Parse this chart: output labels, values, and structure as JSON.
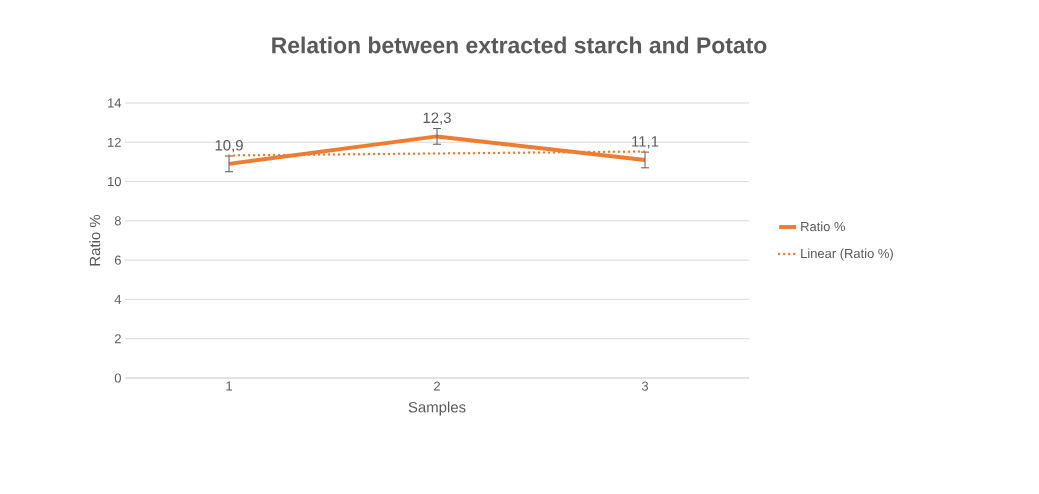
{
  "chart_data": {
    "type": "line",
    "title": "Relation between extracted starch and Potato",
    "xlabel": "Samples",
    "ylabel": "Ratio %",
    "categories": [
      "1",
      "2",
      "3"
    ],
    "series": [
      {
        "name": "Ratio %",
        "color": "#ed7d31",
        "values": [
          10.9,
          12.3,
          11.1
        ],
        "errors": [
          0.4,
          0.4,
          0.4
        ],
        "value_labels": [
          "10,9",
          "12,3",
          "11,1"
        ],
        "line_style": "solid"
      },
      {
        "name": "Linear (Ratio %)",
        "color": "#ed7d31",
        "values": [
          11.33,
          11.43,
          11.53
        ],
        "line_style": "dotted"
      }
    ],
    "ylim": [
      0,
      14
    ],
    "yticks": [
      0,
      2,
      4,
      6,
      8,
      10,
      12,
      14
    ],
    "grid": "y",
    "legend": "right"
  }
}
